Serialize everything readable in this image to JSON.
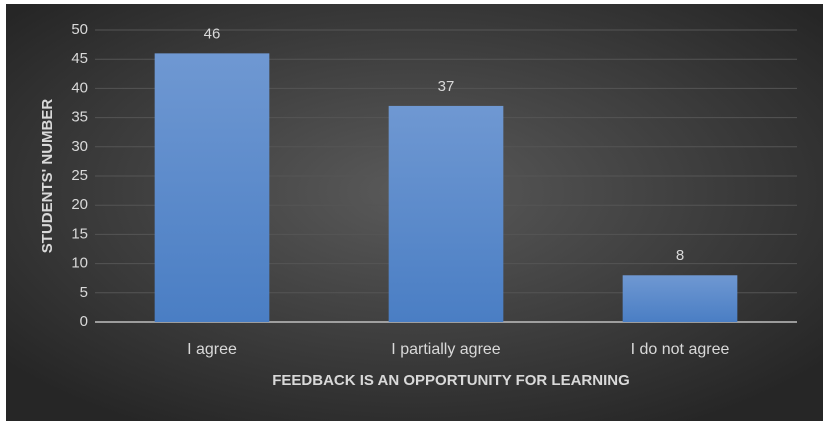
{
  "chart_data": {
    "type": "bar",
    "x_label": "FEEDBACK IS AN OPPORTUNITY FOR LEARNING",
    "y_label": "STUDENTS' NUMBER",
    "categories": [
      "I agree",
      "I partially agree",
      "I do not agree"
    ],
    "values": [
      46,
      37,
      8
    ],
    "color": "#5b8bcc",
    "ylim": [
      0,
      50
    ],
    "yticks": [
      0,
      5,
      10,
      15,
      20,
      25,
      30,
      35,
      40,
      45,
      50
    ],
    "grid": true
  }
}
